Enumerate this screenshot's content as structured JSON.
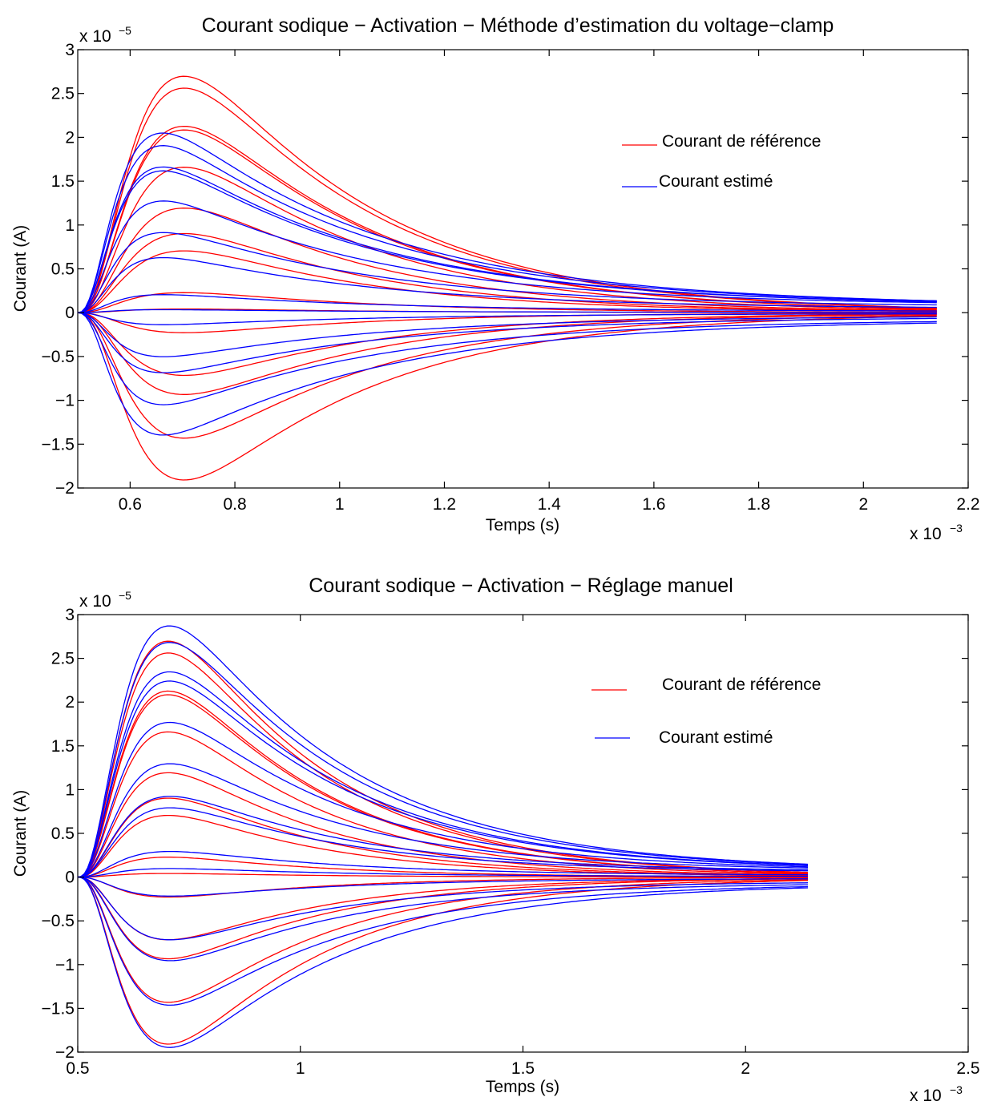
{
  "chart_data": [
    {
      "type": "line",
      "title": "Courant sodique − Activation − Méthode d’estimation du voltage−clamp",
      "xlabel": "Temps (s)",
      "ylabel": "Courant (A)",
      "x_multiplier": "x 10",
      "x_multiplier_exp": "−3",
      "y_multiplier": "x 10",
      "y_multiplier_exp": "−5",
      "xlim": [
        0.5,
        2.2
      ],
      "ylim": [
        -2,
        3
      ],
      "x_ticks": [
        0.6,
        0.8,
        1,
        1.2,
        1.4,
        1.6,
        1.8,
        2,
        2.2
      ],
      "x_tick_labels": [
        "0.6",
        "0.8",
        "1",
        "1.2",
        "1.4",
        "1.6",
        "1.8",
        "2",
        "2.2"
      ],
      "y_ticks": [
        -2,
        -1.5,
        -1,
        -0.5,
        0,
        0.5,
        1,
        1.5,
        2,
        2.5,
        3
      ],
      "y_tick_labels": [
        "−2",
        "−1.5",
        "−1",
        "−0.5",
        "0",
        "0.5",
        "1",
        "1.5",
        "2",
        "2.5",
        "3"
      ],
      "legend": {
        "position": "top-right",
        "entries": [
          {
            "label": "Courant de référence",
            "color": "#ff0000"
          },
          {
            "label": "Courant estimé",
            "color": "#0000ff"
          }
        ]
      },
      "series": [
        {
          "legend_ref": 0,
          "color": "#ff0000",
          "t_start": 0.5,
          "t_end": 2.14,
          "t_peak": 0.665,
          "tau_decay": 0.35,
          "tail_offset": 0,
          "peaks": [
            2.6,
            2.47,
            2.05,
            2.01,
            1.6,
            1.15,
            0.87,
            0.68,
            0.22,
            0.04,
            -0.22,
            -0.69,
            -0.9,
            -1.38,
            -1.84
          ]
        },
        {
          "legend_ref": 1,
          "color": "#0000ff",
          "t_start": 0.5,
          "t_end": 2.14,
          "t_peak": 0.61,
          "tau_decay": 0.4,
          "tail_offset": 0.08,
          "peaks": [
            1.82,
            1.69,
            1.47,
            1.43,
            1.12,
            0.8,
            0.55,
            0.18,
            0.03,
            -0.12,
            -0.44,
            -0.6,
            -0.92,
            -1.23
          ]
        }
      ]
    },
    {
      "type": "line",
      "title": "Courant sodique − Activation − Réglage manuel",
      "xlabel": "Temps (s)",
      "ylabel": "Courant (A)",
      "x_multiplier": "x 10",
      "x_multiplier_exp": "−3",
      "y_multiplier": "x 10",
      "y_multiplier_exp": "−5",
      "xlim": [
        0.5,
        2.5
      ],
      "ylim": [
        -2,
        3
      ],
      "x_ticks": [
        0.5,
        1,
        1.5,
        2,
        2.5
      ],
      "x_tick_labels": [
        "0.5",
        "1",
        "1.5",
        "2",
        "2.5"
      ],
      "y_ticks": [
        -2,
        -1.5,
        -1,
        -0.5,
        0,
        0.5,
        1,
        1.5,
        2,
        2.5,
        3
      ],
      "y_tick_labels": [
        "−2",
        "−1.5",
        "−1",
        "−0.5",
        "0",
        "0.5",
        "1",
        "1.5",
        "2",
        "2.5",
        "3"
      ],
      "legend": {
        "position": "top-right",
        "entries": [
          {
            "label": "Courant de référence",
            "color": "#ff0000"
          },
          {
            "label": "Courant estimé",
            "color": "#0000ff"
          }
        ]
      },
      "series": [
        {
          "legend_ref": 0,
          "color": "#ff0000",
          "t_start": 0.5,
          "t_end": 2.14,
          "t_peak": 0.665,
          "tau_decay": 0.35,
          "tail_offset": 0,
          "peaks": [
            2.6,
            2.47,
            2.05,
            2.01,
            1.6,
            1.15,
            0.87,
            0.68,
            0.22,
            0.04,
            -0.22,
            -0.69,
            -0.9,
            -1.38,
            -1.84
          ]
        },
        {
          "legend_ref": 1,
          "color": "#0000ff",
          "t_start": 0.5,
          "t_end": 2.14,
          "t_peak": 0.66,
          "tau_decay": 0.38,
          "tail_offset": 0.07,
          "peaks": [
            2.7,
            2.52,
            2.2,
            2.1,
            1.65,
            1.2,
            0.85,
            0.73,
            0.27,
            0.09,
            -0.2,
            -0.66,
            -0.88,
            -1.36,
            -1.82
          ]
        }
      ]
    }
  ]
}
